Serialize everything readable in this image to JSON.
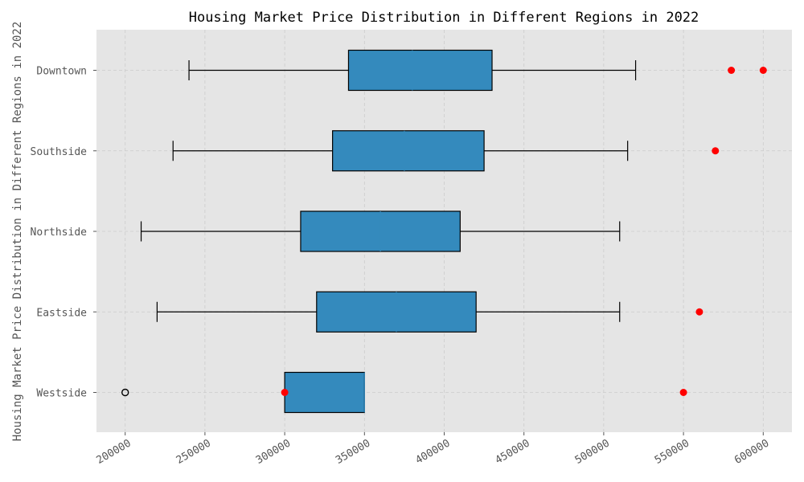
{
  "chart_data": {
    "type": "boxplot",
    "orientation": "horizontal",
    "title": "Housing Market Price Distribution in Different Regions in 2022",
    "xlabel": "",
    "ylabel": "Housing Market Price Distribution in Different Regions in 2022",
    "xlim": [
      182000,
      618000
    ],
    "x_ticks": [
      200000,
      250000,
      300000,
      350000,
      400000,
      450000,
      500000,
      550000,
      600000
    ],
    "grid": true,
    "categories": [
      "Westside",
      "Eastside",
      "Northside",
      "Southside",
      "Downtown"
    ],
    "boxes": [
      {
        "category": "Westside",
        "whisker_low": 300000,
        "q1": 300000,
        "median": 350000,
        "q3": 350000,
        "whisker_high": 350000
      },
      {
        "category": "Eastside",
        "whisker_low": 220000,
        "q1": 320000,
        "median": 370000,
        "q3": 420000,
        "whisker_high": 510000
      },
      {
        "category": "Northside",
        "whisker_low": 210000,
        "q1": 310000,
        "median": 360000,
        "q3": 410000,
        "whisker_high": 510000
      },
      {
        "category": "Southside",
        "whisker_low": 230000,
        "q1": 330000,
        "median": 375000,
        "q3": 425000,
        "whisker_high": 515000
      },
      {
        "category": "Downtown",
        "whisker_low": 240000,
        "q1": 340000,
        "median": 380000,
        "q3": 430000,
        "whisker_high": 520000
      }
    ],
    "outliers_red": [
      {
        "category": "Westside",
        "values": [
          300000,
          550000
        ]
      },
      {
        "category": "Eastside",
        "values": [
          560000
        ]
      },
      {
        "category": "Southside",
        "values": [
          570000
        ]
      },
      {
        "category": "Downtown",
        "values": [
          580000,
          600000
        ]
      }
    ],
    "fliers_hollow": [
      {
        "category": "Westside",
        "values": [
          200000
        ]
      }
    ],
    "colors": {
      "box_fill": "#348abd",
      "box_edge": "#000000",
      "outlier": "#ff0000",
      "plot_background": "#e5e5e5",
      "grid": "#cccccc"
    }
  }
}
